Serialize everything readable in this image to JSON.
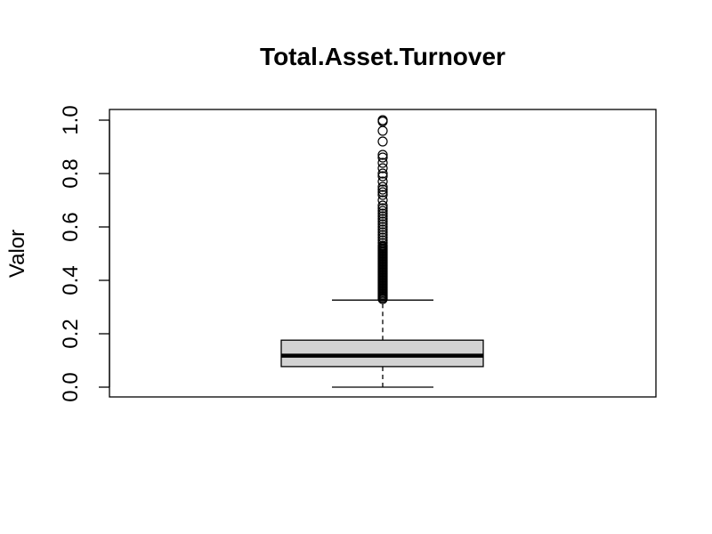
{
  "chart_data": {
    "type": "boxplot",
    "title": "Total.Asset.Turnover",
    "xlabel": "",
    "ylabel": "Valor",
    "ylim": [
      0.0,
      1.0
    ],
    "yticks": [
      0.0,
      0.2,
      0.4,
      0.6,
      0.8,
      1.0
    ],
    "ytick_labels": [
      "0.0",
      "0.2",
      "0.4",
      "0.6",
      "0.8",
      "1.0"
    ],
    "grid": false,
    "legend": "none",
    "box": {
      "min": 0.0,
      "q1": 0.077,
      "median": 0.118,
      "q3": 0.176,
      "max": 0.326,
      "fill_color": "#d3d3d3",
      "outliers": [
        0.33,
        0.335,
        0.34,
        0.345,
        0.35,
        0.355,
        0.36,
        0.365,
        0.37,
        0.375,
        0.38,
        0.385,
        0.39,
        0.395,
        0.4,
        0.405,
        0.41,
        0.415,
        0.42,
        0.425,
        0.43,
        0.435,
        0.44,
        0.445,
        0.45,
        0.455,
        0.46,
        0.465,
        0.47,
        0.475,
        0.48,
        0.485,
        0.49,
        0.495,
        0.5,
        0.505,
        0.51,
        0.515,
        0.52,
        0.525,
        0.53,
        0.54,
        0.55,
        0.56,
        0.57,
        0.58,
        0.59,
        0.6,
        0.61,
        0.62,
        0.63,
        0.64,
        0.65,
        0.66,
        0.67,
        0.68,
        0.7,
        0.72,
        0.73,
        0.74,
        0.75,
        0.77,
        0.79,
        0.8,
        0.82,
        0.84,
        0.86,
        0.87,
        0.92,
        0.96,
        0.995,
        1.0
      ]
    }
  }
}
